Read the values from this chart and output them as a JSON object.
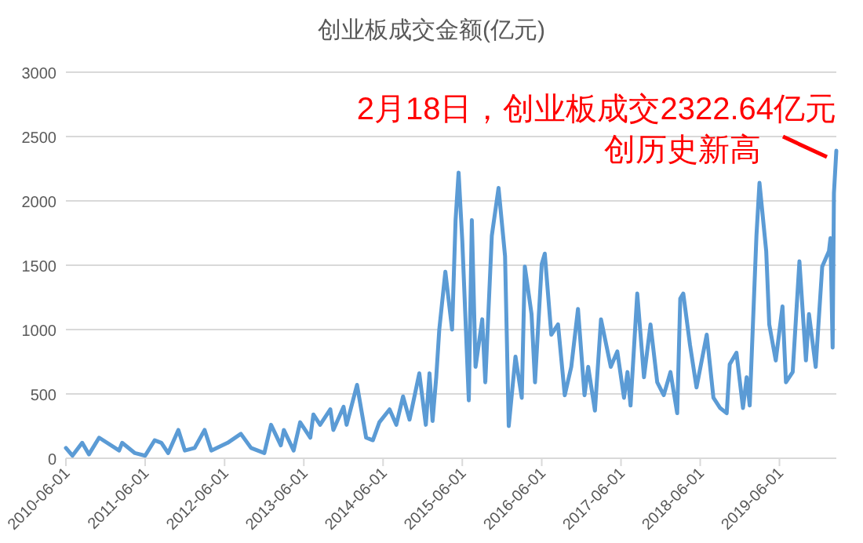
{
  "chart_data": {
    "type": "line",
    "title": "创业板成交金额(亿元)",
    "xlim": [
      "2010-06-01",
      "2020-02-18"
    ],
    "xticks": [
      "2010-06-01",
      "2011-06-01",
      "2012-06-01",
      "2013-06-01",
      "2014-06-01",
      "2015-06-01",
      "2016-06-01",
      "2017-06-01",
      "2018-06-01",
      "2019-06-01"
    ],
    "ylim": [
      0,
      3000
    ],
    "yticks": [
      0,
      500,
      1000,
      1500,
      2000,
      2500,
      3000
    ],
    "grid": "y",
    "marker": "none",
    "line_style": "solid",
    "annotations": [
      "2月18日，创业板成交2322.64亿元",
      {
        "text": "创历史新高",
        "x": "2020-02-18",
        "y": 2390
      }
    ],
    "series": [
      {
        "color": "#5b9bd5",
        "x": [
          "2010-06-01",
          "2010-07-01",
          "2010-08-15",
          "2010-09-15",
          "2010-11-01",
          "2011-02-01",
          "2011-02-15",
          "2011-04-15",
          "2011-06-01",
          "2011-07-15",
          "2011-08-15",
          "2011-09-15",
          "2011-11-01",
          "2011-12-01",
          "2012-01-15",
          "2012-03-01",
          "2012-04-01",
          "2012-06-15",
          "2012-08-15",
          "2012-10-01",
          "2012-12-01",
          "2013-01-01",
          "2013-02-15",
          "2013-03-01",
          "2013-04-15",
          "2013-05-15",
          "2013-07-01",
          "2013-07-15",
          "2013-08-15",
          "2013-10-01",
          "2013-10-15",
          "2013-12-01",
          "2013-12-15",
          "2014-02-01",
          "2014-03-15",
          "2014-04-15",
          "2014-05-15",
          "2014-07-01",
          "2014-08-01",
          "2014-09-01",
          "2014-10-01",
          "2014-11-15",
          "2014-12-15",
          "2015-01-01",
          "2015-01-15",
          "2015-02-01",
          "2015-02-15",
          "2015-03-15",
          "2015-04-15",
          "2015-05-01",
          "2015-05-15",
          "2015-06-01",
          "2015-07-01",
          "2015-07-15",
          "2015-08-01",
          "2015-09-01",
          "2015-09-15",
          "2015-10-15",
          "2015-11-15",
          "2015-12-15",
          "2016-01-01",
          "2016-02-01",
          "2016-03-01",
          "2016-03-15",
          "2016-04-15",
          "2016-05-01",
          "2016-06-01",
          "2016-06-15",
          "2016-07-15",
          "2016-08-15",
          "2016-09-15",
          "2016-10-15",
          "2016-11-15",
          "2016-12-15",
          "2017-01-01",
          "2017-02-01",
          "2017-03-01",
          "2017-04-15",
          "2017-05-15",
          "2017-06-15",
          "2017-07-01",
          "2017-07-15",
          "2017-08-15",
          "2017-09-15",
          "2017-10-15",
          "2017-11-15",
          "2017-12-15",
          "2018-01-15",
          "2018-02-15",
          "2018-03-01",
          "2018-03-15",
          "2018-04-15",
          "2018-05-15",
          "2018-07-01",
          "2018-08-01",
          "2018-09-01",
          "2018-10-01",
          "2018-10-15",
          "2018-11-15",
          "2018-12-15",
          "2019-01-01",
          "2019-01-15",
          "2019-02-15",
          "2019-03-01",
          "2019-04-01",
          "2019-04-15",
          "2019-05-15",
          "2019-06-15",
          "2019-07-01",
          "2019-08-01",
          "2019-09-01",
          "2019-10-01",
          "2019-10-15",
          "2019-11-15",
          "2019-12-15",
          "2020-01-15",
          "2020-01-22",
          "2020-02-01",
          "2020-02-07",
          "2020-02-18"
        ],
        "values": [
          80,
          20,
          120,
          30,
          160,
          60,
          120,
          40,
          20,
          140,
          120,
          40,
          220,
          60,
          80,
          220,
          60,
          120,
          190,
          80,
          40,
          260,
          100,
          220,
          60,
          280,
          160,
          340,
          260,
          380,
          220,
          400,
          260,
          570,
          160,
          140,
          280,
          380,
          260,
          480,
          300,
          660,
          260,
          660,
          290,
          630,
          1000,
          1450,
          1000,
          1850,
          2220,
          1690,
          450,
          1850,
          710,
          1080,
          590,
          1730,
          2100,
          1570,
          250,
          790,
          470,
          1490,
          1120,
          590,
          1510,
          1590,
          960,
          1040,
          490,
          710,
          1160,
          490,
          710,
          370,
          1080,
          710,
          830,
          470,
          670,
          410,
          1280,
          630,
          1040,
          590,
          490,
          670,
          350,
          1240,
          1280,
          880,
          550,
          960,
          470,
          390,
          350,
          730,
          820,
          390,
          630,
          410,
          1730,
          2140,
          1610,
          1040,
          760,
          1180,
          590,
          670,
          1530,
          760,
          1120,
          710,
          1490,
          1610,
          1710,
          860,
          2060,
          2390
        ]
      }
    ]
  }
}
